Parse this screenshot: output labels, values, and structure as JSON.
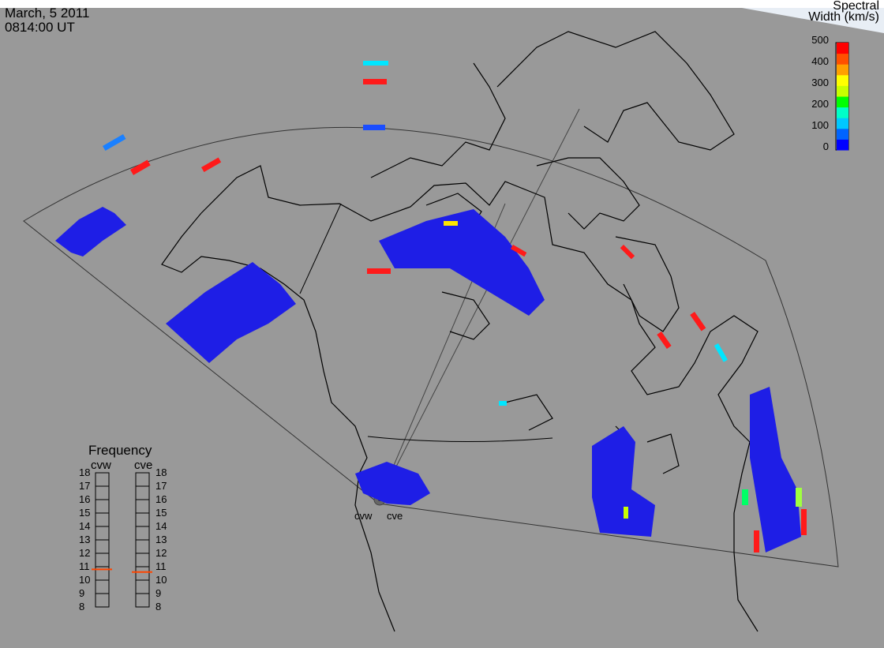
{
  "header": {
    "date": "March, 5 2011",
    "time": "0814:00 UT"
  },
  "legend": {
    "title": "Spectral",
    "subtitle": "Width (km/s)",
    "ticks": [
      "500",
      "400",
      "300",
      "200",
      "100",
      "0"
    ],
    "colors": [
      "#0000ff",
      "#0064ff",
      "#00c8ff",
      "#00ffc8",
      "#00ff00",
      "#c8ff00",
      "#ffff00",
      "#ffa000",
      "#ff5000",
      "#ff0000"
    ]
  },
  "radars": {
    "west": "cvw",
    "east": "cve"
  },
  "frequency": {
    "title": "Frequency",
    "scale": [
      "18",
      "17",
      "16",
      "15",
      "14",
      "13",
      "12",
      "11",
      "10",
      "9",
      "8"
    ],
    "cvw_value_mhz": 10.8,
    "cve_value_mhz": 10.6
  },
  "colors": {
    "background": "#999999",
    "field_of_view_line": "#333333",
    "coast": "#000000",
    "frequency_marker": "#ff4500"
  }
}
